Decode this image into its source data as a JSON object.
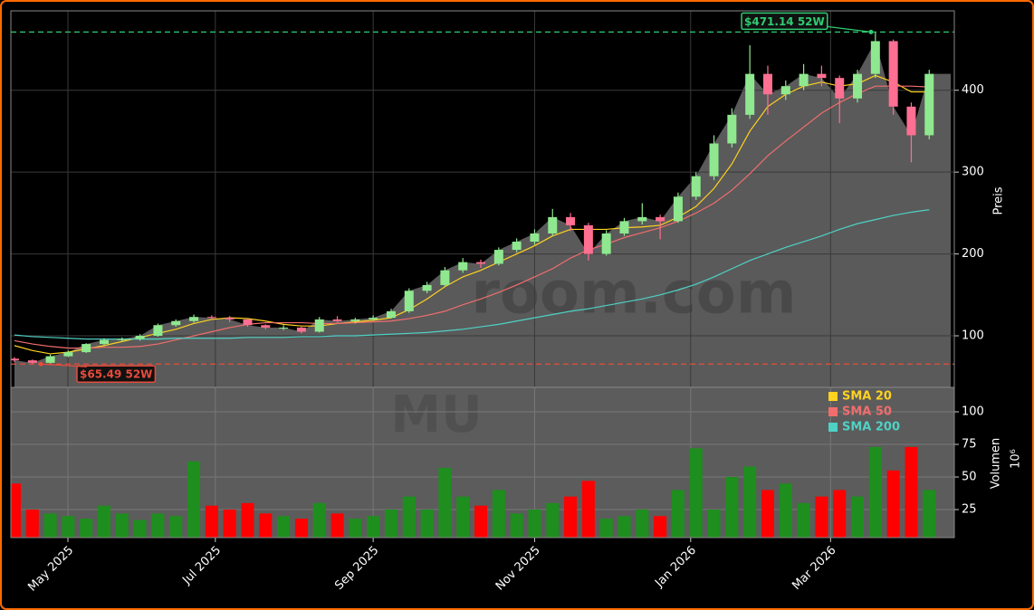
{
  "chart_data": [
    {
      "type": "candlestick",
      "ohlc": [
        [
          72,
          74,
          68,
          70
        ],
        [
          70,
          71,
          65.49,
          67
        ],
        [
          67,
          77,
          66,
          75
        ],
        [
          75,
          82,
          74,
          80
        ],
        [
          80,
          91,
          79,
          90
        ],
        [
          90,
          97,
          88,
          95
        ],
        [
          95,
          98,
          93,
          96
        ],
        [
          96,
          102,
          94,
          100
        ],
        [
          100,
          115,
          99,
          113
        ],
        [
          113,
          120,
          111,
          118
        ],
        [
          118,
          126,
          116,
          123
        ],
        [
          123,
          125,
          119,
          122
        ],
        [
          122,
          124,
          117,
          120
        ],
        [
          120,
          121,
          111,
          113
        ],
        [
          113,
          114,
          108,
          110
        ],
        [
          110,
          113,
          107,
          110
        ],
        [
          110,
          111,
          103,
          105
        ],
        [
          105,
          123,
          104,
          120
        ],
        [
          120,
          124,
          116,
          118
        ],
        [
          118,
          122,
          115,
          120
        ],
        [
          120,
          125,
          118,
          122
        ],
        [
          122,
          133,
          121,
          130
        ],
        [
          130,
          158,
          128,
          155
        ],
        [
          155,
          166,
          152,
          162
        ],
        [
          162,
          184,
          160,
          180
        ],
        [
          180,
          195,
          177,
          190
        ],
        [
          190,
          193,
          183,
          188
        ],
        [
          188,
          208,
          186,
          205
        ],
        [
          205,
          219,
          202,
          215
        ],
        [
          215,
          230,
          211,
          225
        ],
        [
          225,
          255,
          222,
          245
        ],
        [
          245,
          250,
          228,
          235
        ],
        [
          235,
          238,
          192,
          200
        ],
        [
          200,
          229,
          198,
          225
        ],
        [
          225,
          244,
          222,
          240
        ],
        [
          240,
          262,
          236,
          245
        ],
        [
          245,
          248,
          218,
          240
        ],
        [
          240,
          275,
          238,
          270
        ],
        [
          270,
          300,
          266,
          295
        ],
        [
          295,
          345,
          290,
          335
        ],
        [
          335,
          378,
          330,
          370
        ],
        [
          370,
          455,
          365,
          420
        ],
        [
          420,
          430,
          370,
          395
        ],
        [
          395,
          412,
          388,
          405
        ],
        [
          405,
          432,
          400,
          420
        ],
        [
          420,
          430,
          405,
          415
        ],
        [
          415,
          418,
          360,
          390
        ],
        [
          390,
          425,
          385,
          420
        ],
        [
          420,
          471.14,
          415,
          460
        ],
        [
          460,
          462,
          370,
          380
        ],
        [
          380,
          385,
          312,
          345
        ],
        [
          345,
          425,
          340,
          420
        ]
      ],
      "up_color": "#8fe88f",
      "down_color": "#ff6f91",
      "area_color": "#5a5a5a",
      "lines": [
        {
          "name": "SMA 20",
          "color": "#ffd21f",
          "values": [
            88,
            82,
            78,
            80,
            84,
            88,
            93,
            98,
            103,
            108,
            115,
            120,
            122,
            121,
            118,
            114,
            112,
            112,
            115,
            117,
            119,
            122,
            132,
            145,
            160,
            172,
            180,
            190,
            200,
            210,
            222,
            230,
            230,
            230,
            232,
            233,
            235,
            245,
            258,
            280,
            310,
            350,
            380,
            395,
            405,
            410,
            405,
            408,
            418,
            410,
            398,
            398
          ]
        },
        {
          "name": "SMA 50",
          "color": "#f26d6d",
          "values": [
            94,
            90,
            87,
            85,
            85,
            86,
            86,
            87,
            90,
            95,
            100,
            105,
            110,
            114,
            116,
            116,
            116,
            115,
            115,
            116,
            117,
            118,
            121,
            125,
            130,
            138,
            145,
            153,
            162,
            172,
            182,
            195,
            205,
            212,
            220,
            226,
            232,
            240,
            250,
            262,
            278,
            298,
            320,
            338,
            355,
            372,
            385,
            396,
            405,
            405,
            405,
            404
          ]
        },
        {
          "name": "SMA 200",
          "color": "#4fd1c5",
          "values": [
            101,
            99,
            98,
            97,
            96,
            96,
            96,
            96,
            96,
            97,
            97,
            97,
            97,
            98,
            98,
            98,
            99,
            99,
            100,
            100,
            101,
            102,
            103,
            104,
            106,
            108,
            111,
            114,
            118,
            122,
            126,
            130,
            133,
            137,
            141,
            145,
            150,
            156,
            163,
            172,
            182,
            192,
            200,
            208,
            215,
            222,
            230,
            237,
            242,
            247,
            251,
            254
          ]
        }
      ],
      "annotations": [
        {
          "label": "$471.14 52W",
          "value": 471.14,
          "color": "#2ecc71"
        },
        {
          "label": "$65.49 52W",
          "value": 65.49,
          "color": "#e74c3c"
        }
      ],
      "ylabel": "Preis",
      "ylim": [
        37,
        497
      ],
      "yticks": [
        100,
        200,
        300,
        400
      ],
      "xlim": [
        -0.2,
        52.4
      ],
      "xticks": [
        {
          "value": 2.98,
          "label": "May 2025"
        },
        {
          "value": 11.2,
          "label": "Jul 2025"
        },
        {
          "value": 20.0,
          "label": "Sep 2025"
        },
        {
          "value": 29.0,
          "label": "Nov 2025"
        },
        {
          "value": 37.7,
          "label": "Jan 2026"
        },
        {
          "value": 45.5,
          "label": "Mar 2026"
        }
      ],
      "grid": true,
      "watermark": "room.com"
    },
    {
      "type": "bar",
      "values": [
        45,
        25,
        22,
        20,
        18,
        28,
        22,
        17,
        22,
        20,
        62,
        28,
        25,
        30,
        22,
        20,
        18,
        30,
        22,
        18,
        20,
        25,
        35,
        25,
        57,
        35,
        28,
        40,
        22,
        25,
        30,
        35,
        47,
        18,
        20,
        25,
        20,
        40,
        72,
        25,
        50,
        58,
        40,
        45,
        30,
        35,
        40,
        35,
        73,
        55,
        73,
        40
      ],
      "ylabel": "Volumen",
      "offset_label": "10⁶",
      "ylim": [
        3.5,
        118.75
      ],
      "yticks": [
        25,
        50,
        75,
        100
      ],
      "up_color": "#1e8e1e",
      "down_color": "#ff0000",
      "background": "#5c5c5c",
      "grid": true,
      "watermark": "MU"
    }
  ]
}
